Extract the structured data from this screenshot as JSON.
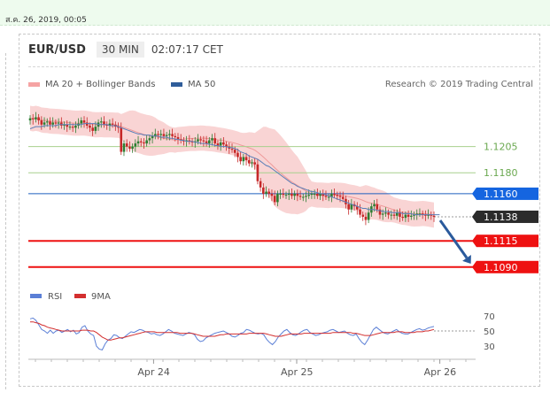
{
  "page": {
    "timestamp": "ส.ค. 26, 2019, 00:05"
  },
  "header": {
    "symbol": "EUR/USD",
    "timeframe": "30 MIN",
    "time": "02:07:17 CET"
  },
  "legend": {
    "items": [
      {
        "label": "MA 20 + Bollinger Bands",
        "color": "#f28b82"
      },
      {
        "label": "MA 50",
        "color": "#2f5d9a"
      }
    ],
    "credit": "Research © 2019 Trading Central"
  },
  "colors": {
    "up": "#2e7d32",
    "down": "#c62828",
    "band": "#f7c6c6",
    "ma50": "#5b7fb8",
    "ma20": "#ee9a9a",
    "rsi": "#5b7fd6",
    "rsi_ma": "#d32f2f"
  },
  "chart_data": [
    {
      "type": "candlestick",
      "ylim": [
        1.1078,
        1.1252
      ],
      "x_ticks": [
        {
          "label": "Apr 24",
          "pos": 0.28
        },
        {
          "label": "Apr 25",
          "pos": 0.6
        },
        {
          "label": "Apr 26",
          "pos": 0.92
        }
      ],
      "close": [
        1.1232,
        1.1231,
        1.1233,
        1.123,
        1.1226,
        1.1228,
        1.1229,
        1.1226,
        1.1228,
        1.1227,
        1.1228,
        1.1225,
        1.1226,
        1.1224,
        1.1224,
        1.1223,
        1.1225,
        1.1227,
        1.123,
        1.1228,
        1.1225,
        1.1223,
        1.122,
        1.1224,
        1.1228,
        1.1229,
        1.1226,
        1.1225,
        1.1227,
        1.1226,
        1.1224,
        1.1223,
        1.12,
        1.1208,
        1.1205,
        1.1203,
        1.1205,
        1.1208,
        1.121,
        1.1209,
        1.1208,
        1.1211,
        1.1213,
        1.1215,
        1.1217,
        1.1216,
        1.1217,
        1.1215,
        1.1216,
        1.1217,
        1.1215,
        1.1214,
        1.1212,
        1.1211,
        1.121,
        1.1211,
        1.121,
        1.1209,
        1.121,
        1.1212,
        1.1211,
        1.121,
        1.1208,
        1.1211,
        1.1213,
        1.1208,
        1.1206,
        1.1209,
        1.1207,
        1.1205,
        1.1203,
        1.1202,
        1.1199,
        1.1195,
        1.1191,
        1.1195,
        1.1192,
        1.1189,
        1.119,
        1.1188,
        1.1172,
        1.1166,
        1.116,
        1.1162,
        1.116,
        1.1158,
        1.1152,
        1.116,
        1.116,
        1.1159,
        1.1159,
        1.116,
        1.1158,
        1.116,
        1.1158,
        1.1157,
        1.1157,
        1.1158,
        1.1159,
        1.116,
        1.116,
        1.1158,
        1.116,
        1.1158,
        1.1157,
        1.1157,
        1.116,
        1.1159,
        1.1158,
        1.1157,
        1.1155,
        1.115,
        1.1145,
        1.115,
        1.1148,
        1.1145,
        1.114,
        1.1138,
        1.1135,
        1.1142,
        1.1148,
        1.115,
        1.1145,
        1.114,
        1.1141,
        1.1142,
        1.114,
        1.114,
        1.1139,
        1.1142,
        1.1138,
        1.1137,
        1.114,
        1.1138,
        1.1139,
        1.114,
        1.1141,
        1.1141,
        1.114,
        1.1139,
        1.114,
        1.1139,
        1.1138
      ],
      "ma50": [
        1.1222,
        1.1223,
        1.1224,
        1.1224,
        1.1224,
        1.1225,
        1.1225,
        1.1225,
        1.1225,
        1.1225,
        1.1226,
        1.1226,
        1.1226,
        1.1226,
        1.1226,
        1.1226,
        1.1226,
        1.1226,
        1.1226,
        1.1227,
        1.1227,
        1.1227,
        1.1227,
        1.1227,
        1.1226,
        1.1226,
        1.1226,
        1.1226,
        1.1225,
        1.1225,
        1.1225,
        1.1224,
        1.1223,
        1.1222,
        1.1221,
        1.122,
        1.1219,
        1.1218,
        1.1217,
        1.1217,
        1.1216,
        1.1216,
        1.1216,
        1.1215,
        1.1215,
        1.1215,
        1.1214,
        1.1214,
        1.1214,
        1.1213,
        1.1213,
        1.1212,
        1.1212,
        1.1211,
        1.1211,
        1.121,
        1.121,
        1.121,
        1.1209,
        1.1209,
        1.1208,
        1.1208,
        1.1208,
        1.1207,
        1.1207,
        1.1206,
        1.1206,
        1.1205,
        1.1205,
        1.1205,
        1.1204,
        1.1204,
        1.1203,
        1.1202,
        1.12,
        1.1199,
        1.1198,
        1.1196,
        1.1195,
        1.1194,
        1.1193,
        1.1191,
        1.1189,
        1.1187,
        1.1186,
        1.1184,
        1.1182,
        1.118,
        1.1178,
        1.1176,
        1.1174,
        1.1172,
        1.117,
        1.1169,
        1.1167,
        1.1166,
        1.1165,
        1.1164,
        1.1163,
        1.1162,
        1.1162,
        1.1161,
        1.116,
        1.116,
        1.1159,
        1.1158,
        1.1157,
        1.1156,
        1.1155,
        1.1154,
        1.1153,
        1.1152,
        1.1151,
        1.115,
        1.1149,
        1.1148,
        1.1147,
        1.1146,
        1.1146,
        1.1145,
        1.1145,
        1.1145,
        1.1144,
        1.1144,
        1.1143,
        1.1143,
        1.1143,
        1.1142,
        1.1142,
        1.1142,
        1.1142,
        1.1141,
        1.1141,
        1.1141,
        1.1141,
        1.114,
        1.114,
        1.114,
        1.114,
        1.114,
        1.114,
        1.114,
        1.114,
        1.114,
        1.114
      ],
      "levels": [
        {
          "value": 1.1205,
          "label": "1.1205",
          "style": "support-green"
        },
        {
          "value": 1.118,
          "label": "1.1180",
          "style": "support-green"
        },
        {
          "value": 1.116,
          "label": "1.1160",
          "style": "pivot-blue"
        },
        {
          "value": 1.1138,
          "label": "1.1138",
          "style": "last-price"
        },
        {
          "value": 1.1115,
          "label": "1.1115",
          "style": "target-red"
        },
        {
          "value": 1.109,
          "label": "1.1090",
          "style": "target-red"
        }
      ],
      "forecast_arrow": {
        "from": 1.1138,
        "to": 1.1092
      }
    },
    {
      "type": "line",
      "title": "",
      "ylim": [
        15,
        78
      ],
      "y_ticks": [
        {
          "value": 70,
          "label": "70"
        },
        {
          "value": 50,
          "label": "50"
        },
        {
          "value": 30,
          "label": "30"
        }
      ],
      "series": [
        {
          "name": "RSI",
          "values": [
            66,
            67,
            64,
            58,
            52,
            50,
            47,
            51,
            47,
            50,
            51,
            48,
            50,
            52,
            49,
            51,
            46,
            48,
            55,
            57,
            50,
            46,
            44,
            30,
            26,
            25,
            33,
            38,
            40,
            45,
            44,
            41,
            40,
            43,
            46,
            49,
            48,
            50,
            52,
            51,
            49,
            48,
            46,
            47,
            45,
            44,
            46,
            49,
            52,
            50,
            47,
            46,
            45,
            44,
            46,
            48,
            47,
            45,
            39,
            36,
            37,
            41,
            43,
            45,
            47,
            48,
            49,
            50,
            48,
            46,
            43,
            42,
            44,
            47,
            48,
            52,
            51,
            49,
            47,
            46,
            47,
            45,
            39,
            35,
            32,
            36,
            42,
            46,
            50,
            52,
            48,
            45,
            44,
            46,
            49,
            51,
            52,
            48,
            46,
            44,
            45,
            47,
            48,
            49,
            51,
            52,
            50,
            48,
            49,
            50,
            47,
            45,
            44,
            46,
            40,
            35,
            32,
            38,
            45,
            52,
            55,
            52,
            49,
            47,
            46,
            48,
            50,
            52,
            49,
            47,
            46,
            46,
            48,
            50,
            52,
            53,
            51,
            52,
            54,
            55,
            56
          ]
        },
        {
          "name": "9MA",
          "values": [
            62,
            62,
            61,
            60,
            58,
            57,
            55,
            54,
            53,
            52,
            51,
            50,
            50,
            50,
            50,
            50,
            50,
            50,
            51,
            51,
            51,
            50,
            50,
            48,
            45,
            42,
            40,
            38,
            38,
            39,
            40,
            41,
            41,
            42,
            43,
            44,
            45,
            46,
            47,
            48,
            49,
            49,
            49,
            49,
            48,
            48,
            48,
            48,
            48,
            48,
            48,
            48,
            47,
            47,
            47,
            47,
            47,
            46,
            45,
            44,
            43,
            43,
            43,
            43,
            43,
            44,
            45,
            45,
            46,
            46,
            46,
            46,
            46,
            46,
            46,
            46,
            47,
            47,
            47,
            47,
            47,
            47,
            46,
            45,
            44,
            43,
            43,
            43,
            44,
            45,
            46,
            46,
            46,
            46,
            46,
            47,
            47,
            47,
            47,
            47,
            47,
            47,
            47,
            47,
            47,
            48,
            48,
            48,
            48,
            48,
            48,
            48,
            47,
            47,
            46,
            45,
            44,
            44,
            44,
            45,
            46,
            47,
            48,
            48,
            48,
            48,
            48,
            49,
            49,
            49,
            48,
            48,
            48,
            48,
            49,
            49,
            49,
            50,
            50,
            51,
            52
          ]
        }
      ]
    }
  ]
}
